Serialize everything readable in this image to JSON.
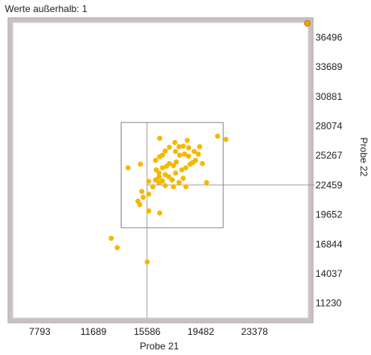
{
  "header": {
    "outside_label": "Werte außerhalb: 1"
  },
  "colors": {
    "frame": "#c9c1c1",
    "plot_bg": "#ffffff",
    "point": "#f5b800",
    "outlier_point": "#f0a000",
    "guide_lines": "#8a8a8a"
  },
  "chart_data": {
    "type": "scatter",
    "xlabel": "Probe 21",
    "ylabel": "Probe 22",
    "xlim": [
      5846,
      27275
    ],
    "ylim": [
      9826,
      37900
    ],
    "x_ticks": [
      "7793",
      "11689",
      "15586",
      "19482",
      "23378"
    ],
    "y_ticks": [
      "36496",
      "33689",
      "30881",
      "28074",
      "25267",
      "22459",
      "19652",
      "16844",
      "14037",
      "11230"
    ],
    "y_axis_position": "right",
    "grid": false,
    "selection_box": {
      "x": [
        13700,
        21100
      ],
      "y": [
        18400,
        28400
      ]
    },
    "crosshair": {
      "x": 15586,
      "y": 22459
    },
    "outliers_outside_range": 1,
    "points": [
      [
        12980,
        17400
      ],
      [
        13420,
        16500
      ],
      [
        15590,
        15150
      ],
      [
        14920,
        20940
      ],
      [
        15050,
        20600
      ],
      [
        15700,
        20000
      ],
      [
        16500,
        19800
      ],
      [
        15300,
        21300
      ],
      [
        15200,
        21850
      ],
      [
        15700,
        21600
      ],
      [
        16000,
        22300
      ],
      [
        15700,
        22800
      ],
      [
        16200,
        22950
      ],
      [
        16450,
        22700
      ],
      [
        16700,
        22850
      ],
      [
        16450,
        23200
      ],
      [
        16450,
        23600
      ],
      [
        16250,
        23900
      ],
      [
        16700,
        24100
      ],
      [
        17000,
        24250
      ],
      [
        17200,
        24500
      ],
      [
        17500,
        24300
      ],
      [
        17700,
        24650
      ],
      [
        16900,
        23450
      ],
      [
        17150,
        23250
      ],
      [
        17400,
        22950
      ],
      [
        17900,
        22700
      ],
      [
        18200,
        23100
      ],
      [
        17650,
        23600
      ],
      [
        18100,
        23900
      ],
      [
        18400,
        24100
      ],
      [
        18700,
        24450
      ],
      [
        18900,
        24600
      ],
      [
        19100,
        24800
      ],
      [
        18600,
        25200
      ],
      [
        18300,
        25400
      ],
      [
        17950,
        25300
      ],
      [
        17650,
        25650
      ],
      [
        17900,
        26100
      ],
      [
        18200,
        26150
      ],
      [
        18600,
        26000
      ],
      [
        19000,
        25650
      ],
      [
        19300,
        25400
      ],
      [
        19400,
        26100
      ],
      [
        17200,
        26050
      ],
      [
        16900,
        25700
      ],
      [
        16700,
        25300
      ],
      [
        16500,
        25150
      ],
      [
        16200,
        24800
      ],
      [
        15100,
        24450
      ],
      [
        14200,
        24100
      ],
      [
        19600,
        24500
      ],
      [
        19900,
        22700
      ],
      [
        17500,
        22300
      ],
      [
        16900,
        22400
      ],
      [
        18400,
        22300
      ],
      [
        16500,
        26900
      ],
      [
        17600,
        26500
      ],
      [
        18500,
        26700
      ],
      [
        20700,
        27100
      ],
      [
        21300,
        26800
      ]
    ]
  }
}
